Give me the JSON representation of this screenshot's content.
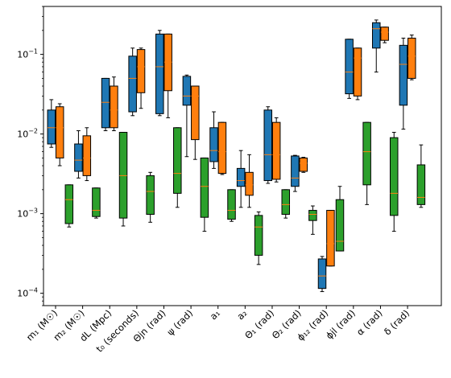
{
  "chart_data": {
    "type": "box",
    "y_scale": "log",
    "ylim": [
      7e-05,
      0.4
    ],
    "y_ticks": [
      {
        "value": 0.0001,
        "base": "10",
        "exp": "−4"
      },
      {
        "value": 0.001,
        "base": "10",
        "exp": "−3"
      },
      {
        "value": 0.01,
        "base": "10",
        "exp": "−2"
      },
      {
        "value": 0.1,
        "base": "10",
        "exp": "−1"
      }
    ],
    "categories": [
      {
        "label": "m₁ (M☉)"
      },
      {
        "label": "m₂ (M☉)"
      },
      {
        "label": "dL (Mpc)"
      },
      {
        "label": "t₀ (seconds)"
      },
      {
        "label": "Θjn (rad)"
      },
      {
        "label": "ψ (rad)"
      },
      {
        "label": "a₁"
      },
      {
        "label": "a₂"
      },
      {
        "label": "Θ₁ (rad)"
      },
      {
        "label": "Θ₂ (rad)"
      },
      {
        "label": "ϕ₁₂ (rad)"
      },
      {
        "label": "ϕjl (rad)"
      },
      {
        "label": "α (rad)"
      },
      {
        "label": "δ (rad)"
      }
    ],
    "series": [
      {
        "color": "#1f77b4",
        "boxes": [
          {
            "whislo": 0.0068,
            "q1": 0.0075,
            "med": 0.012,
            "q3": 0.02,
            "whishi": 0.027
          },
          {
            "whislo": 0.0028,
            "q1": 0.0034,
            "med": 0.0047,
            "q3": 0.0075,
            "whishi": 0.011
          },
          {
            "whislo": 0.011,
            "q1": 0.012,
            "med": 0.025,
            "q3": 0.05,
            "whishi": 0.05
          },
          {
            "whislo": 0.017,
            "q1": 0.019,
            "med": 0.05,
            "q3": 0.095,
            "whishi": 0.12
          },
          {
            "whislo": 0.017,
            "q1": 0.018,
            "med": 0.07,
            "q3": 0.18,
            "whishi": 0.2
          },
          {
            "whislo": 0.0052,
            "q1": 0.023,
            "med": 0.03,
            "q3": 0.053,
            "whishi": 0.055
          },
          {
            "whislo": 0.0037,
            "q1": 0.0045,
            "med": 0.0062,
            "q3": 0.012,
            "whishi": 0.019
          },
          {
            "whislo": 0.0012,
            "q1": 0.0022,
            "med": 0.0026,
            "q3": 0.0037,
            "whishi": 0.0062
          },
          {
            "whislo": 0.0024,
            "q1": 0.0026,
            "med": 0.0055,
            "q3": 0.02,
            "whishi": 0.022
          },
          {
            "whislo": 0.0019,
            "q1": 0.0022,
            "med": 0.0028,
            "q3": 0.0053,
            "whishi": 0.0054
          },
          {
            "whislo": 0.000105,
            "q1": 0.000115,
            "med": 0.000165,
            "q3": 0.00027,
            "whishi": 0.00029
          },
          {
            "whislo": 0.028,
            "q1": 0.032,
            "med": 0.06,
            "q3": 0.155,
            "whishi": 0.155
          },
          {
            "whislo": 0.06,
            "q1": 0.12,
            "med": 0.21,
            "q3": 0.25,
            "whishi": 0.27
          },
          {
            "whislo": 0.0115,
            "q1": 0.023,
            "med": 0.075,
            "q3": 0.13,
            "whishi": 0.16
          }
        ]
      },
      {
        "color": "#ff7f0e",
        "boxes": [
          {
            "whislo": 0.004,
            "q1": 0.005,
            "med": 0.012,
            "q3": 0.022,
            "whishi": 0.024
          },
          {
            "whislo": 0.0026,
            "q1": 0.003,
            "med": 0.005,
            "q3": 0.0095,
            "whishi": 0.012
          },
          {
            "whislo": 0.011,
            "q1": 0.012,
            "med": 0.02,
            "q3": 0.04,
            "whishi": 0.052
          },
          {
            "whislo": 0.021,
            "q1": 0.033,
            "med": 0.07,
            "q3": 0.115,
            "whishi": 0.12
          },
          {
            "whislo": 0.016,
            "q1": 0.035,
            "med": 0.08,
            "q3": 0.18,
            "whishi": 0.18
          },
          {
            "whislo": 0.0048,
            "q1": 0.0085,
            "med": 0.03,
            "q3": 0.04,
            "whishi": 0.04
          },
          {
            "whislo": 0.0031,
            "q1": 0.0032,
            "med": 0.006,
            "q3": 0.014,
            "whishi": 0.014
          },
          {
            "whislo": 0.0012,
            "q1": 0.0017,
            "med": 0.0023,
            "q3": 0.0033,
            "whishi": 0.0055
          },
          {
            "whislo": 0.0025,
            "q1": 0.0027,
            "med": 0.0055,
            "q3": 0.014,
            "whishi": 0.016
          },
          {
            "whislo": 0.0033,
            "q1": 0.0034,
            "med": 0.0043,
            "q3": 0.005,
            "whishi": 0.0051
          },
          {
            "whislo": 0.00022,
            "q1": 0.00022,
            "med": 0.00042,
            "q3": 0.0011,
            "whishi": 0.0011
          },
          {
            "whislo": 0.027,
            "q1": 0.03,
            "med": 0.09,
            "q3": 0.12,
            "whishi": 0.12
          },
          {
            "whislo": 0.14,
            "q1": 0.15,
            "med": 0.19,
            "q3": 0.22,
            "whishi": 0.22
          },
          {
            "whislo": 0.048,
            "q1": 0.05,
            "med": 0.095,
            "q3": 0.16,
            "whishi": 0.175
          }
        ]
      },
      {
        "color": "#2ca02c",
        "boxes": [
          {
            "whislo": 0.00068,
            "q1": 0.00075,
            "med": 0.0015,
            "q3": 0.0023,
            "whishi": 0.0023
          },
          {
            "whislo": 0.00088,
            "q1": 0.00092,
            "med": 0.0011,
            "q3": 0.0021,
            "whishi": 0.0021
          },
          {
            "whislo": 0.0007,
            "q1": 0.00088,
            "med": 0.003,
            "q3": 0.0105,
            "whishi": 0.0105
          },
          {
            "whislo": 0.00078,
            "q1": 0.00098,
            "med": 0.0019,
            "q3": 0.003,
            "whishi": 0.0033
          },
          {
            "whislo": 0.0012,
            "q1": 0.0018,
            "med": 0.0032,
            "q3": 0.012,
            "whishi": 0.012
          },
          {
            "whislo": 0.0006,
            "q1": 0.0009,
            "med": 0.0022,
            "q3": 0.005,
            "whishi": 0.005
          },
          {
            "whislo": 0.0008,
            "q1": 0.00085,
            "med": 0.0011,
            "q3": 0.002,
            "whishi": 0.002
          },
          {
            "whislo": 0.00023,
            "q1": 0.0003,
            "med": 0.00068,
            "q3": 0.00095,
            "whishi": 0.00105
          },
          {
            "whislo": 0.00088,
            "q1": 0.00098,
            "med": 0.0013,
            "q3": 0.002,
            "whishi": 0.002
          },
          {
            "whislo": 0.00055,
            "q1": 0.00082,
            "med": 0.00098,
            "q3": 0.0011,
            "whishi": 0.00125
          },
          {
            "whislo": 0.00034,
            "q1": 0.00034,
            "med": 0.00045,
            "q3": 0.0015,
            "whishi": 0.0022
          },
          {
            "whislo": 0.0013,
            "q1": 0.0023,
            "med": 0.006,
            "q3": 0.014,
            "whishi": 0.014
          },
          {
            "whislo": 0.0006,
            "q1": 0.00095,
            "med": 0.0018,
            "q3": 0.009,
            "whishi": 0.0105
          },
          {
            "whislo": 0.0012,
            "q1": 0.0013,
            "med": 0.0016,
            "q3": 0.0041,
            "whishi": 0.0073
          }
        ]
      }
    ],
    "median_color": "#ff7f0e",
    "grid": false,
    "legend": "none"
  }
}
